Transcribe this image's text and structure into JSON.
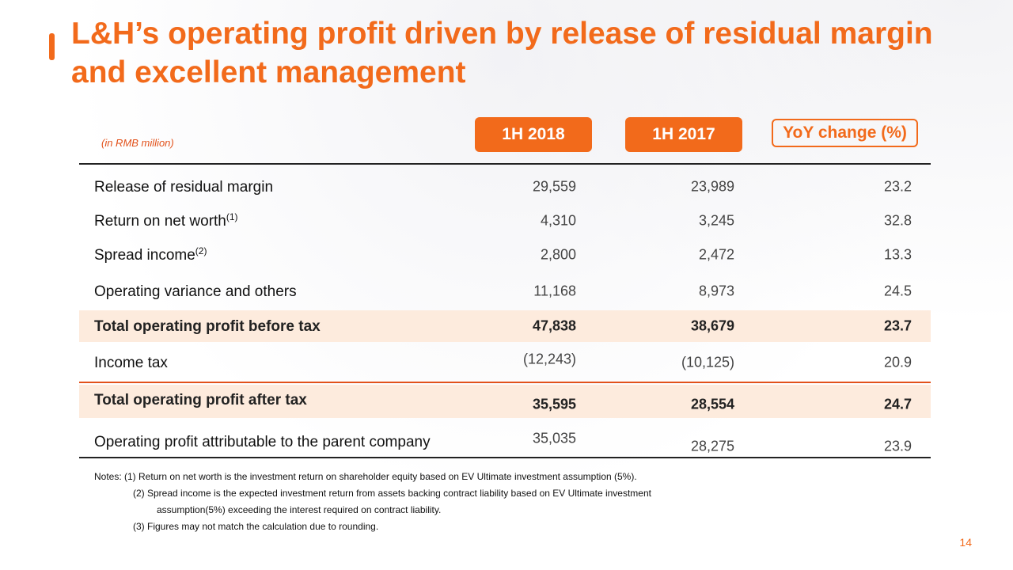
{
  "title": "L&H’s operating profit driven by release of residual margin and excellent management",
  "unit_note": "(in RMB million)",
  "columns": [
    "1H 2018",
    "1H 2017",
    "YoY change (%)"
  ],
  "rows": [
    {
      "label": "Release of residual margin",
      "sup": "",
      "v2018": "29,559",
      "v2017": "23,989",
      "yoy": "23.2"
    },
    {
      "label": "Return on net worth",
      "sup": "(1)",
      "v2018": "4,310",
      "v2017": "3,245",
      "yoy": "32.8"
    },
    {
      "label": "Spread income",
      "sup": "(2)",
      "v2018": "2,800",
      "v2017": "2,472",
      "yoy": "13.3"
    },
    {
      "label": "Operating variance and others",
      "sup": "",
      "v2018": "11,168",
      "v2017": "8,973",
      "yoy": "24.5"
    },
    {
      "label": "Total operating profit before tax",
      "sup": "",
      "v2018": "47,838",
      "v2017": "38,679",
      "yoy": "23.7"
    },
    {
      "label": "Income tax",
      "sup": "",
      "v2018": "(12,243)",
      "v2017": "(10,125)",
      "yoy": "20.9"
    },
    {
      "label": "Total operating profit after tax",
      "sup": "",
      "v2018": "35,595",
      "v2017": "28,554",
      "yoy": "24.7"
    },
    {
      "label": "Operating profit attributable to the parent company",
      "sup": "",
      "v2018": "35,035",
      "v2017": "28,275",
      "yoy": "23.9"
    }
  ],
  "notes": [
    "Notes: (1) Return on net worth is the investment return on shareholder equity based on EV Ultimate investment assumption (5%).",
    "(2) Spread income is the expected investment return from assets backing contract liability based on EV Ultimate investment",
    "assumption(5%) exceeding the interest required on contract liability.",
    "(3) Figures may not match the calculation due to rounding."
  ],
  "page_number": "14",
  "colors": {
    "accent": "#f26a1b",
    "highlight": "#fdebdd"
  }
}
